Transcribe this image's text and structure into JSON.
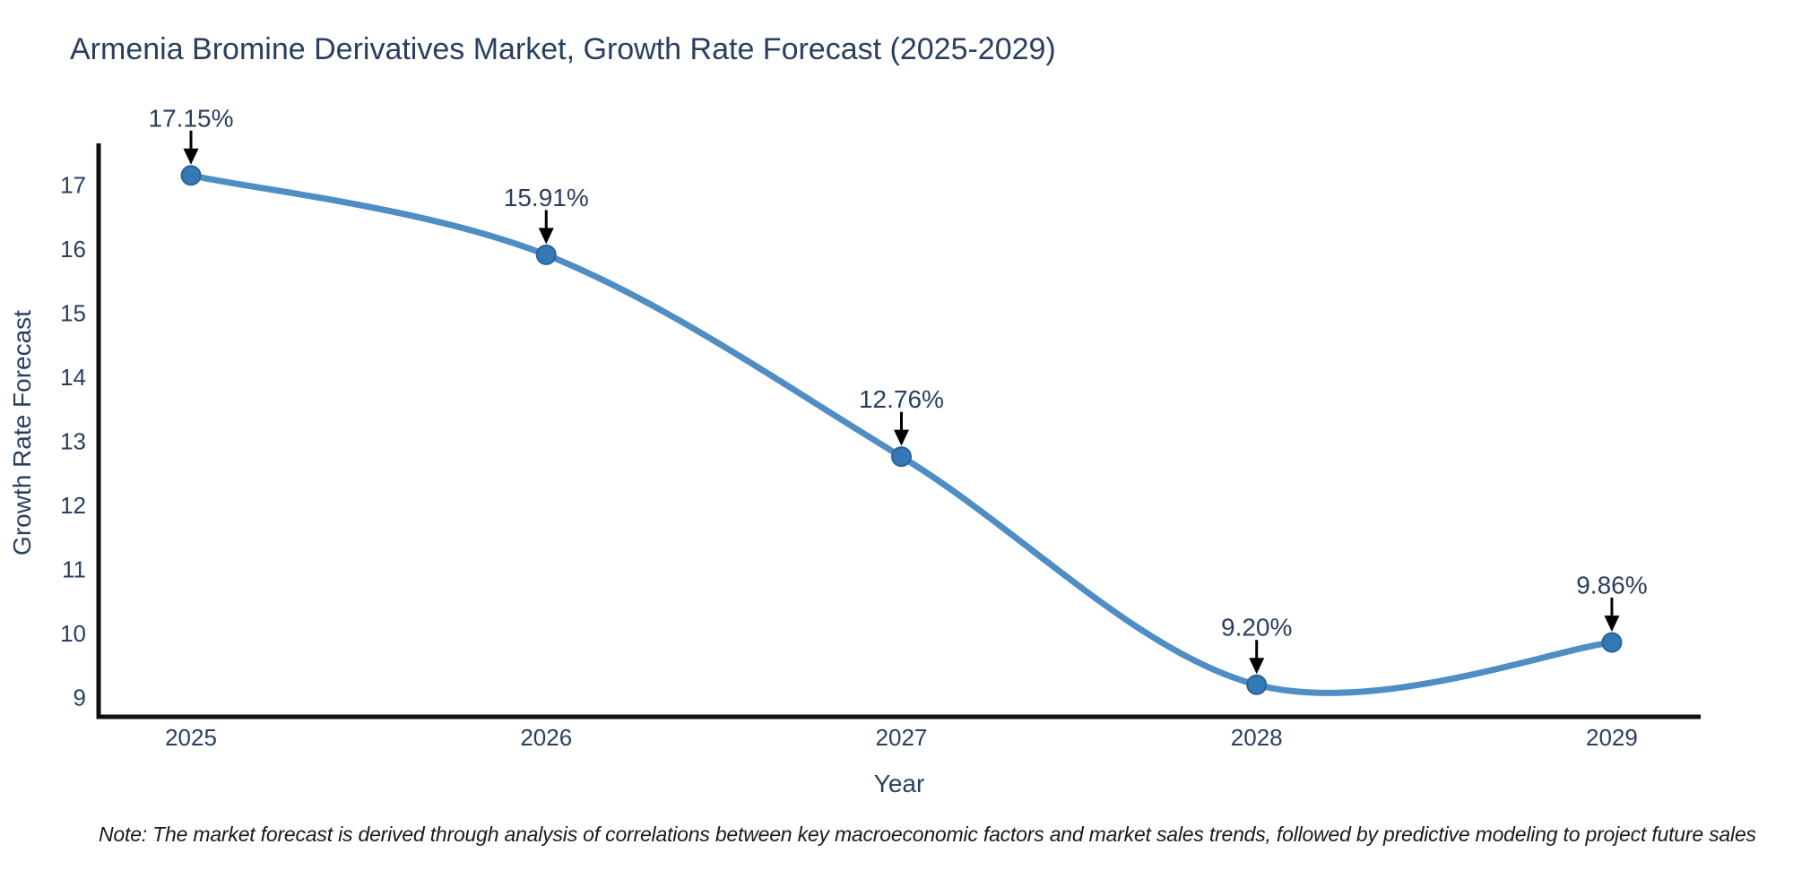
{
  "note": "Note: The market forecast is derived through analysis of correlations between key macroeconomic factors and market sales trends, followed by predictive modeling to project future sales",
  "chart_data": {
    "type": "line",
    "title": "Armenia Bromine Derivatives Market, Growth Rate Forecast (2025-2029)",
    "xlabel": "Year",
    "ylabel": "Growth Rate Forecast",
    "x": [
      2025,
      2026,
      2027,
      2028,
      2029
    ],
    "series": [
      {
        "name": "Growth Rate Forecast",
        "values": [
          17.15,
          15.91,
          12.76,
          9.2,
          9.86
        ]
      }
    ],
    "point_labels": [
      "17.15%",
      "15.91%",
      "12.76%",
      "9.20%",
      "9.86%"
    ],
    "yticks": [
      9,
      10,
      11,
      12,
      13,
      14,
      15,
      16,
      17
    ],
    "xticks": [
      "2025",
      "2026",
      "2027",
      "2028",
      "2029"
    ],
    "x_range": [
      2024.74,
      2029.25
    ],
    "y_range": [
      8.7,
      17.65
    ],
    "line_shape": "spline",
    "grid": false,
    "legend_position": "none",
    "colors": {
      "line": "#4f8dc5",
      "marker": "#3578b6",
      "marker_edge": "#2b6399",
      "arrow": "#000000",
      "axis_line": "#111111",
      "text": "#2a3f5f",
      "note_text": "#1a1a1a"
    }
  }
}
